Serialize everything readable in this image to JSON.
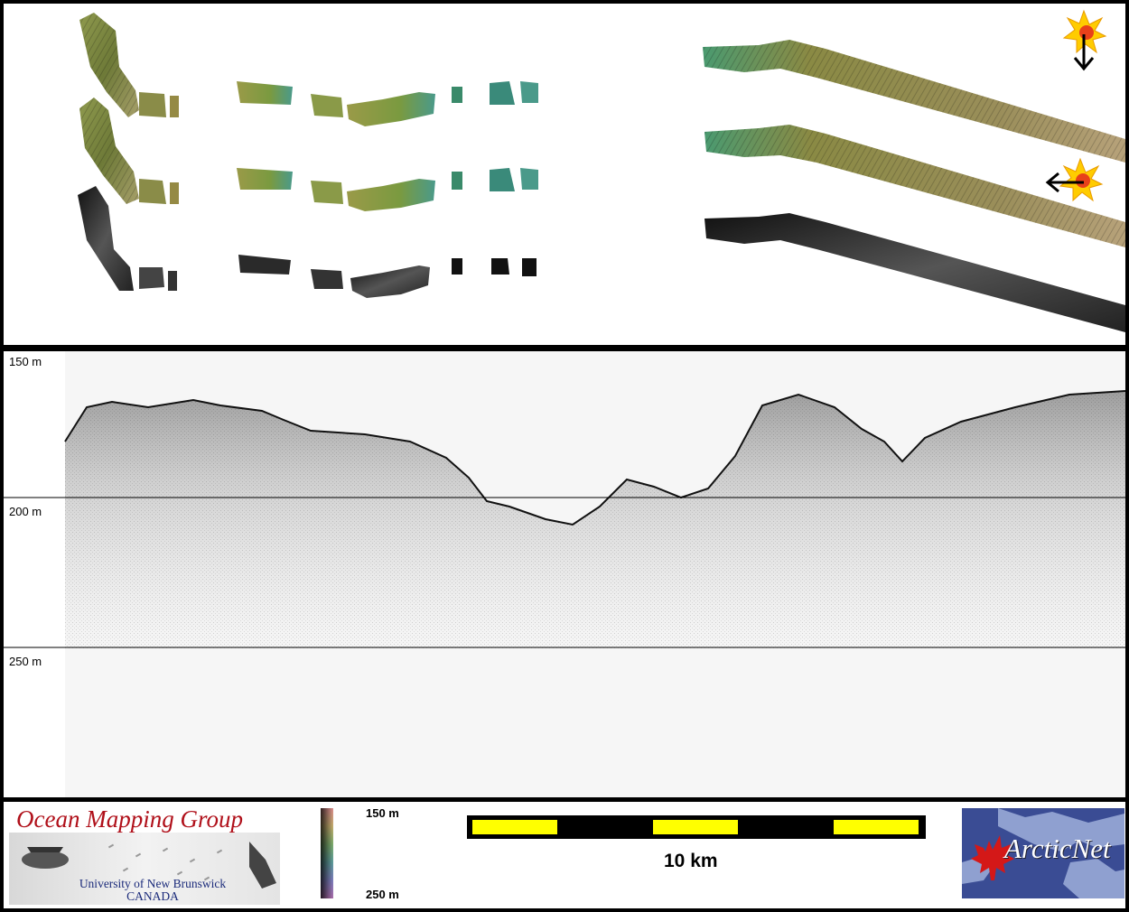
{
  "profile": {
    "depth_labels": [
      "150 m",
      "200 m",
      "250 m"
    ]
  },
  "footer": {
    "ocean_logo": {
      "title": "Ocean Mapping Group",
      "university": "University of New Brunswick",
      "country": "CANADA"
    },
    "colorbar": {
      "top_label": "150 m",
      "bottom_label": "250 m"
    },
    "scale_bar": {
      "label": "10 km",
      "colors": [
        "#ffff00",
        "#000000"
      ]
    },
    "arcticnet_logo": {
      "text": "ArcticNet"
    }
  },
  "icons": [
    "sun-icon",
    "arrow-down-icon",
    "arrow-left-icon",
    "maple-leaf-icon"
  ],
  "colors": {
    "seafloor_green": "#7a9a4a",
    "seafloor_teal": "#4aa07a",
    "backscatter": "#222222",
    "sun": "#ffcc00",
    "sun_center": "#e8401a",
    "title_red": "#b0101a",
    "arctic_blue": "#33448a"
  }
}
